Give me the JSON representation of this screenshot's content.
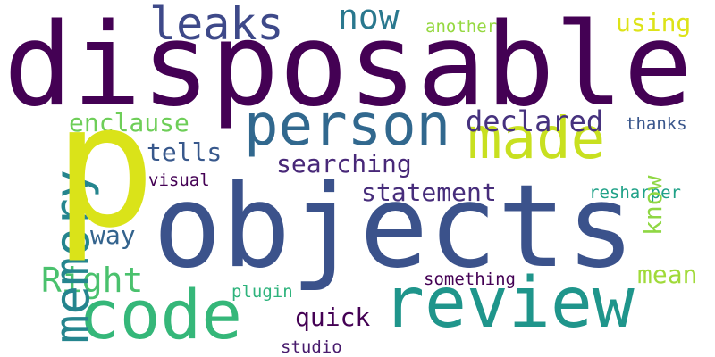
{
  "words": {
    "disposable": "disposable",
    "objects": "objects",
    "p": "p",
    "review": "review",
    "code": "code",
    "person": "person",
    "made": "made",
    "memory": "memory",
    "leaks": "leaks",
    "now": "now",
    "right": "Right",
    "declared": "declared",
    "statement": "statement",
    "searching": "searching",
    "tells": "tells",
    "enclause": "enclause",
    "using": "using",
    "know": "know",
    "mean": "mean",
    "quick": "quick",
    "way": "way",
    "another": "another",
    "thanks": "thanks",
    "visual": "visual",
    "resharper": "resharper",
    "plugin": "plugin",
    "something": "something",
    "studio": "studio"
  },
  "colors": {
    "background": "#ffffff",
    "palette": "viridis",
    "dark_purple": "#440154",
    "indigo": "#3b528b",
    "teal": "#1f958b",
    "green": "#35b779",
    "yellow": "#dae319"
  }
}
